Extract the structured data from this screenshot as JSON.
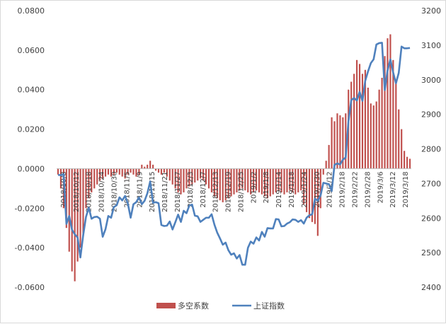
{
  "chart_data": {
    "type": "bar",
    "colors": {
      "bar": "#c0504d",
      "line": "#4f81bd",
      "axis": "#bfbfbf",
      "text": "#404040"
    },
    "left_axis": {
      "range": [
        -0.06,
        0.08
      ],
      "ticks": [
        "-0.0600",
        "-0.0400",
        "-0.0200",
        "0.0000",
        "0.0200",
        "0.0400",
        "0.0600",
        "0.0800"
      ]
    },
    "right_axis": {
      "range": [
        2400,
        3200
      ],
      "ticks": [
        "2400",
        "2500",
        "2600",
        "2700",
        "2800",
        "2900",
        "3000",
        "3100",
        "3200"
      ]
    },
    "x_tick_labels": [
      "2018/10/8",
      "2018/10/12",
      "2018/10/18",
      "2018/10/24",
      "2018/10/30",
      "2018/11/5",
      "2018/11/9",
      "2018/11/15",
      "2018/11/21",
      "2018/11/27",
      "2018/12/3",
      "2018/12/7",
      "2018/12/13",
      "2018/12/19",
      "2018/12/25",
      "2019/1/2",
      "2019/1/8",
      "2019/1/14",
      "2019/1/18",
      "2019/1/24",
      "2019/1/30",
      "2019/2/12",
      "2019/2/18",
      "2019/2/22",
      "2019/2/28",
      "2019/3/6",
      "2019/3/12",
      "2019/3/18"
    ],
    "legend": {
      "bar_label": "多空系数",
      "line_label": "上证指数",
      "position": "bottom"
    },
    "series": [
      {
        "name": "多空系数",
        "axis": "left",
        "kind": "bar",
        "values": [
          -0.003,
          -0.01,
          -0.02,
          -0.03,
          -0.042,
          -0.052,
          -0.057,
          -0.047,
          -0.04,
          -0.034,
          -0.02,
          -0.015,
          -0.012,
          -0.01,
          -0.008,
          -0.006,
          -0.005,
          -0.004,
          -0.003,
          -0.004,
          -0.003,
          -0.002,
          -0.003,
          -0.004,
          -0.005,
          -0.003,
          -0.002,
          -0.003,
          -0.004,
          -0.003,
          0.002,
          0.001,
          0.002,
          0.004,
          0.002,
          -0.001,
          -0.002,
          -0.003,
          -0.002,
          -0.004,
          -0.006,
          -0.008,
          -0.01,
          -0.012,
          -0.013,
          -0.012,
          -0.01,
          -0.009,
          -0.008,
          -0.007,
          -0.006,
          -0.005,
          -0.006,
          -0.008,
          -0.01,
          -0.012,
          -0.014,
          -0.015,
          -0.016,
          -0.017,
          -0.016,
          -0.015,
          -0.014,
          -0.013,
          -0.012,
          -0.011,
          -0.01,
          -0.011,
          -0.012,
          -0.013,
          -0.012,
          -0.011,
          -0.012,
          -0.013,
          -0.014,
          -0.015,
          -0.014,
          -0.013,
          -0.012,
          -0.011,
          -0.012,
          -0.013,
          -0.012,
          -0.011,
          -0.012,
          -0.013,
          -0.012,
          -0.011,
          -0.018,
          -0.022,
          -0.025,
          -0.027,
          -0.028,
          -0.034,
          -0.02,
          -0.003,
          0.004,
          0.012,
          0.026,
          0.024,
          0.028,
          0.027,
          0.026,
          0.028,
          0.04,
          0.044,
          0.048,
          0.055,
          0.053,
          0.048,
          0.05,
          0.041,
          0.033,
          0.032,
          0.034,
          0.04,
          0.046,
          0.057,
          0.066,
          0.068,
          0.055,
          0.045,
          0.03,
          0.02,
          0.009,
          0.006,
          0.005
        ]
      },
      {
        "name": "上证指数",
        "axis": "right",
        "kind": "line",
        "values": [
          2725,
          2724,
          2727,
          2583,
          2606,
          2566,
          2553,
          2544,
          2486,
          2550,
          2603,
          2630,
          2598,
          2603,
          2604,
          2598,
          2546,
          2568,
          2606,
          2601,
          2632,
          2637,
          2660,
          2651,
          2664,
          2642,
          2601,
          2640,
          2646,
          2660,
          2640,
          2650,
          2672,
          2706,
          2644,
          2646,
          2643,
          2580,
          2577,
          2578,
          2590,
          2567,
          2588,
          2610,
          2589,
          2621,
          2614,
          2636,
          2639,
          2607,
          2605,
          2589,
          2595,
          2601,
          2601,
          2611,
          2581,
          2558,
          2541,
          2523,
          2529,
          2507,
          2494,
          2498,
          2483,
          2493,
          2465,
          2465,
          2514,
          2532,
          2526,
          2544,
          2535,
          2560,
          2546,
          2571,
          2570,
          2570,
          2597,
          2596,
          2576,
          2577,
          2584,
          2588,
          2596,
          2595,
          2589,
          2594,
          2584,
          2601,
          2608,
          2611,
          2656,
          2650,
          2665,
          2702,
          2700,
          2698,
          2678,
          2754,
          2758,
          2755,
          2769,
          2775,
          2880,
          2941,
          2947,
          2940,
          2965,
          2939,
          2997,
          3024,
          3048,
          3059,
          3102,
          3106,
          3107,
          2970,
          3027,
          3059,
          3021,
          2990,
          3020,
          3096,
          3091,
          3091,
          3092
        ]
      }
    ]
  }
}
